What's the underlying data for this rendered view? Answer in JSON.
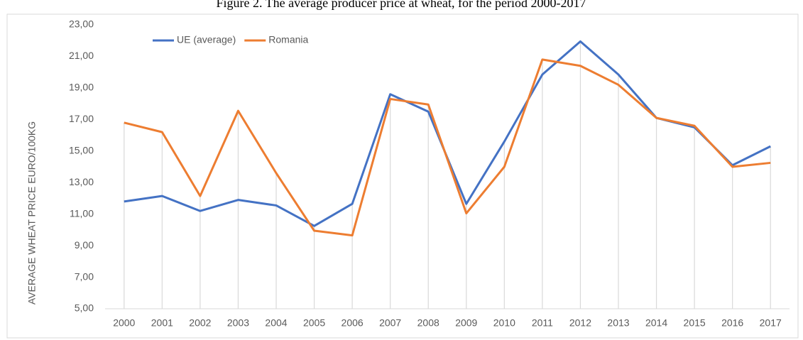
{
  "chart_data": {
    "type": "line",
    "title": "Figure 2. The average producer price at wheat, for the period 2000-2017",
    "y_label": "AVERAGE WHEAT PRICE EURO/100KG",
    "categories": [
      "2000",
      "2001",
      "2002",
      "2003",
      "2004",
      "2005",
      "2006",
      "2007",
      "2008",
      "2009",
      "2010",
      "2011",
      "2012",
      "2013",
      "2014",
      "2015",
      "2016",
      "2017"
    ],
    "series": [
      {
        "name": "UE (average)",
        "color": "#4472c4",
        "values": [
          11.8,
          12.15,
          11.2,
          11.9,
          11.55,
          10.25,
          11.65,
          18.6,
          17.5,
          11.65,
          15.6,
          19.85,
          21.95,
          19.85,
          17.1,
          16.5,
          14.1,
          15.3
        ]
      },
      {
        "name": "Romania",
        "color": "#ed7d31",
        "values": [
          16.8,
          16.2,
          12.15,
          17.55,
          13.6,
          9.95,
          9.65,
          18.3,
          17.95,
          11.05,
          14.0,
          20.8,
          20.4,
          19.2,
          17.1,
          16.6,
          14.0,
          14.25
        ]
      }
    ],
    "ylim": [
      5,
      23
    ],
    "yticks": [
      {
        "value": 5,
        "label": "5,00"
      },
      {
        "value": 7,
        "label": "7,00"
      },
      {
        "value": 9,
        "label": "9,00"
      },
      {
        "value": 11,
        "label": "11,00"
      },
      {
        "value": 13,
        "label": "13,00"
      },
      {
        "value": 15,
        "label": "15,00"
      },
      {
        "value": 17,
        "label": "17,00"
      },
      {
        "value": 19,
        "label": "19,00"
      },
      {
        "value": 21,
        "label": "21,00"
      },
      {
        "value": 23,
        "label": "23,00"
      }
    ],
    "drop_lines": true,
    "legend": "top-left"
  }
}
